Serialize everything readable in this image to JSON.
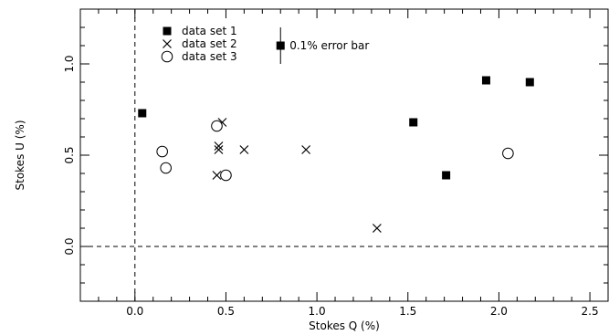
{
  "chart_data": {
    "type": "scatter",
    "xlabel": "Stokes Q (%)",
    "ylabel": "Stokes U (%)",
    "xlim": [
      -0.3,
      2.6
    ],
    "ylim": [
      -0.3,
      1.3
    ],
    "x_ticks": [
      0.0,
      0.5,
      1.0,
      1.5,
      2.0,
      2.5
    ],
    "x_tick_labels": [
      "0.0",
      "0.5",
      "1.0",
      "1.5",
      "2.0",
      "2.5"
    ],
    "y_ticks": [
      0.0,
      0.5,
      1.0
    ],
    "y_tick_labels": [
      "0.0",
      "0.5",
      "1.0"
    ],
    "x_minor_step": 0.1,
    "y_minor_step": 0.1,
    "reference_lines": {
      "x": 0.0,
      "y": 0.0,
      "style": "dashed"
    },
    "legend_position": "top-left",
    "series": [
      {
        "name": "data set 1",
        "marker": "filled-square",
        "points": [
          [
            0.04,
            0.73
          ],
          [
            1.53,
            0.68
          ],
          [
            1.71,
            0.39
          ],
          [
            1.93,
            0.91
          ],
          [
            2.17,
            0.9
          ]
        ]
      },
      {
        "name": "data set 2",
        "marker": "cross",
        "points": [
          [
            0.45,
            0.39
          ],
          [
            0.46,
            0.53
          ],
          [
            0.46,
            0.55
          ],
          [
            0.48,
            0.68
          ],
          [
            0.6,
            0.53
          ],
          [
            0.94,
            0.53
          ],
          [
            1.33,
            0.1
          ]
        ]
      },
      {
        "name": "data set 3",
        "marker": "open-circle",
        "points": [
          [
            0.15,
            0.52
          ],
          [
            0.17,
            0.43
          ],
          [
            0.45,
            0.66
          ],
          [
            0.5,
            0.39
          ],
          [
            2.05,
            0.51
          ]
        ]
      }
    ],
    "error_bar_annotation": {
      "label": "0.1% error bar",
      "x": 0.8,
      "y": 1.1,
      "half_length": 0.1
    }
  }
}
